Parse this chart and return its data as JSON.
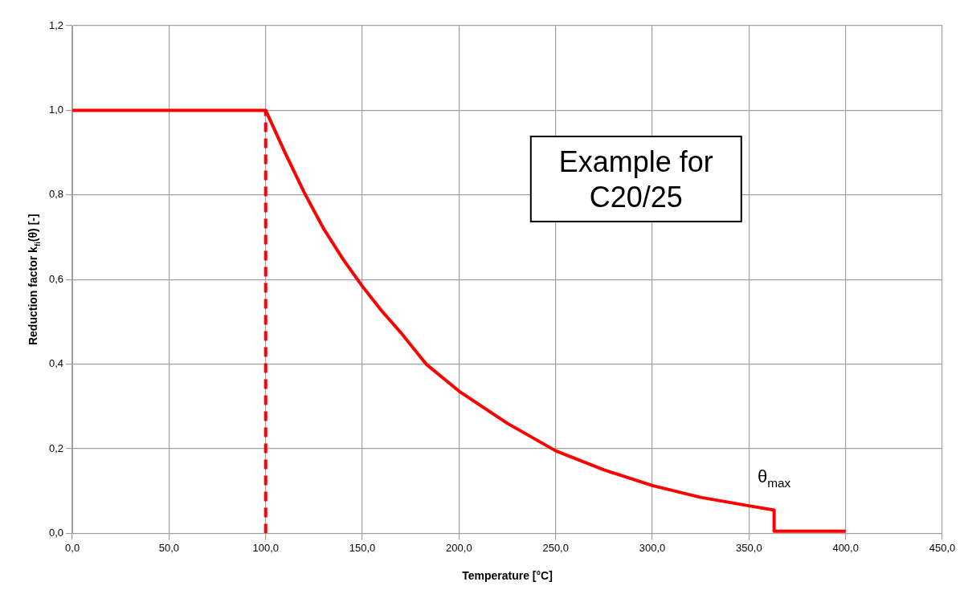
{
  "chart_data": {
    "type": "line",
    "xlabel": "Temperature [°C]",
    "ylabel": "Reduction factor k$_{fi}$(θ) [-]",
    "series": [
      {
        "color": "#ff0000",
        "line_style": "solid",
        "x": [
          0,
          100,
          110,
          120,
          130,
          140,
          150,
          160,
          170,
          183,
          200,
          225,
          250,
          275,
          300,
          325,
          350,
          363,
          363,
          400
        ],
        "values": [
          1,
          1,
          0.9,
          0.805,
          0.72,
          0.648,
          0.584,
          0.526,
          0.474,
          0.4,
          0.336,
          0.26,
          0.195,
          0.15,
          0.113,
          0.085,
          0.065,
          0.055,
          0.005,
          0.005
        ]
      },
      {
        "color": "#ff0000",
        "line_style": "dashed",
        "x": [
          100,
          100
        ],
        "values": [
          0,
          1
        ]
      }
    ],
    "xlim": [
      0,
      450
    ],
    "xticks": [
      {
        "value": 0,
        "label": "0,0"
      },
      {
        "value": 50,
        "label": "50,0"
      },
      {
        "value": 100,
        "label": "100,0"
      },
      {
        "value": 150,
        "label": "150,0"
      },
      {
        "value": 200,
        "label": "200,0"
      },
      {
        "value": 250,
        "label": "250,0"
      },
      {
        "value": 300,
        "label": "300,0"
      },
      {
        "value": 350,
        "label": "350,0"
      },
      {
        "value": 400,
        "label": "400,0"
      },
      {
        "value": 450,
        "label": "450,0"
      }
    ],
    "ylim": [
      0,
      1.2
    ],
    "yticks": [
      {
        "value": 0,
        "label": "0,0"
      },
      {
        "value": 0.2,
        "label": "0,2"
      },
      {
        "value": 0.4,
        "label": "0,4"
      },
      {
        "value": 0.6,
        "label": "0,6"
      },
      {
        "value": 0.8,
        "label": "0,8"
      },
      {
        "value": 1,
        "label": "1,0"
      },
      {
        "value": 1.2,
        "label": "1,2"
      }
    ],
    "grid": true,
    "legend": false,
    "marker": "none",
    "annotations": [
      "Example for C20/25",
      {
        "text": "θ$_{max}$",
        "x": 363,
        "y": 0.055
      }
    ]
  }
}
